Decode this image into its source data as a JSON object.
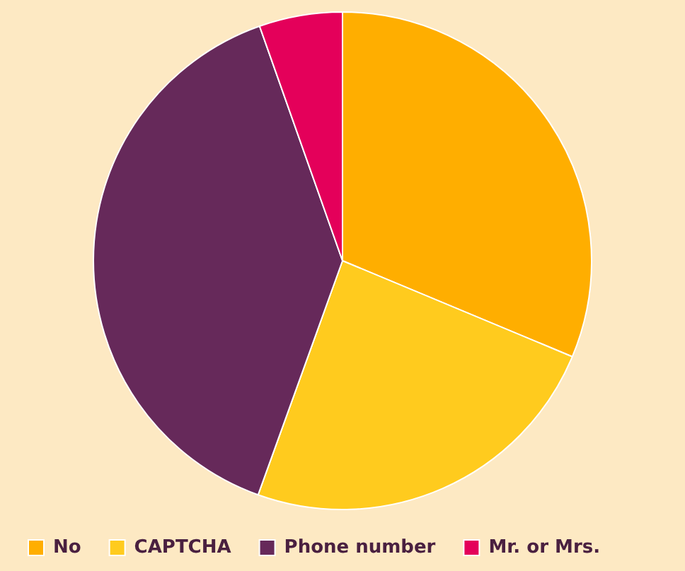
{
  "chart_data": {
    "type": "pie",
    "categories": [
      "No",
      "CAPTCHA",
      "Phone number",
      "Mr. or Mrs."
    ],
    "values": [
      31.3,
      24.2,
      39.1,
      5.4
    ],
    "colors": [
      "#ffae00",
      "#ffcb1e",
      "#66295a",
      "#e4005a"
    ],
    "legend": "bottom"
  }
}
